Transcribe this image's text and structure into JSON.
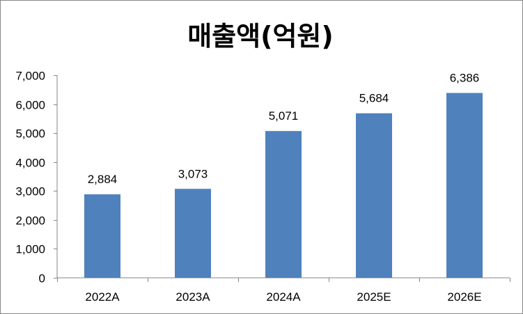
{
  "chart_data": {
    "type": "bar",
    "title": "매출액(억원)",
    "categories": [
      "2022A",
      "2023A",
      "2024A",
      "2025E",
      "2026E"
    ],
    "series": [
      {
        "values": [
          2884,
          3073,
          5071,
          5684,
          6386
        ],
        "data_labels": [
          "2,884",
          "3,073",
          "5,071",
          "5,684",
          "6,386"
        ]
      }
    ],
    "ylim": [
      0,
      7000
    ],
    "yticks": [
      0,
      1000,
      2000,
      3000,
      4000,
      5000,
      6000,
      7000
    ],
    "ytick_labels": [
      "0",
      "1,000",
      "2,000",
      "3,000",
      "4,000",
      "5,000",
      "6,000",
      "7,000"
    ],
    "grid": false,
    "legend": "none",
    "colors": {
      "bar": "#4F81BD",
      "axis": "#868686",
      "frame": "#868686"
    }
  }
}
